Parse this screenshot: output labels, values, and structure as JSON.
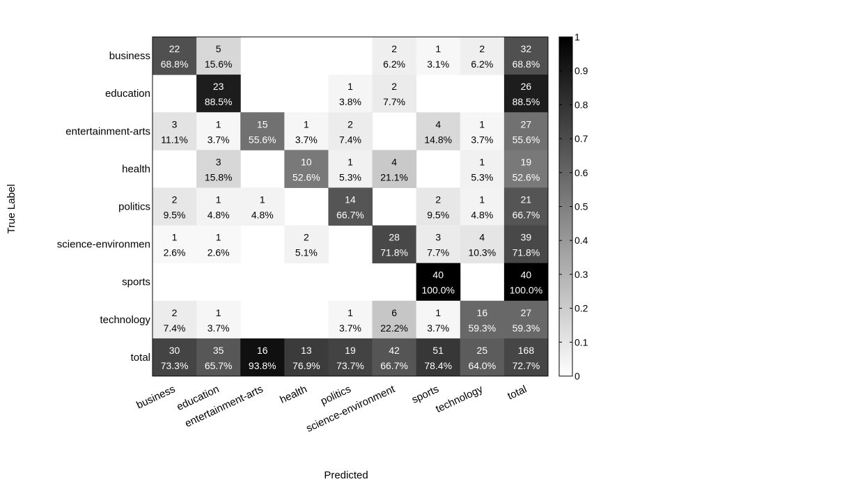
{
  "chart_data": {
    "type": "heatmap",
    "xlabel": "Predicted",
    "ylabel": "True Label",
    "x_categories": [
      "business",
      "education",
      "entertainment-arts",
      "health",
      "politics",
      "science-environment",
      "sports",
      "technology",
      "total"
    ],
    "y_categories": [
      "business",
      "education",
      "entertainment-arts",
      "health",
      "politics",
      "science-environmen",
      "sports",
      "technology",
      "total"
    ],
    "cells": [
      [
        {
          "count": "22",
          "pct": "68.8%",
          "v": 0.688
        },
        {
          "count": "5",
          "pct": "15.6%",
          "v": 0.156
        },
        null,
        null,
        null,
        {
          "count": "2",
          "pct": "6.2%",
          "v": 0.062
        },
        {
          "count": "1",
          "pct": "3.1%",
          "v": 0.031
        },
        {
          "count": "2",
          "pct": "6.2%",
          "v": 0.062
        },
        {
          "count": "32",
          "pct": "68.8%",
          "v": 0.688
        }
      ],
      [
        null,
        {
          "count": "23",
          "pct": "88.5%",
          "v": 0.885
        },
        null,
        null,
        {
          "count": "1",
          "pct": "3.8%",
          "v": 0.038
        },
        {
          "count": "2",
          "pct": "7.7%",
          "v": 0.077
        },
        null,
        null,
        {
          "count": "26",
          "pct": "88.5%",
          "v": 0.885
        }
      ],
      [
        {
          "count": "3",
          "pct": "11.1%",
          "v": 0.111
        },
        {
          "count": "1",
          "pct": "3.7%",
          "v": 0.037
        },
        {
          "count": "15",
          "pct": "55.6%",
          "v": 0.556
        },
        {
          "count": "1",
          "pct": "3.7%",
          "v": 0.037
        },
        {
          "count": "2",
          "pct": "7.4%",
          "v": 0.074
        },
        null,
        {
          "count": "4",
          "pct": "14.8%",
          "v": 0.148
        },
        {
          "count": "1",
          "pct": "3.7%",
          "v": 0.037
        },
        {
          "count": "27",
          "pct": "55.6%",
          "v": 0.556
        }
      ],
      [
        null,
        {
          "count": "3",
          "pct": "15.8%",
          "v": 0.158
        },
        null,
        {
          "count": "10",
          "pct": "52.6%",
          "v": 0.526
        },
        {
          "count": "1",
          "pct": "5.3%",
          "v": 0.053
        },
        {
          "count": "4",
          "pct": "21.1%",
          "v": 0.211
        },
        null,
        {
          "count": "1",
          "pct": "5.3%",
          "v": 0.053
        },
        {
          "count": "19",
          "pct": "52.6%",
          "v": 0.526
        }
      ],
      [
        {
          "count": "2",
          "pct": "9.5%",
          "v": 0.095
        },
        {
          "count": "1",
          "pct": "4.8%",
          "v": 0.048
        },
        {
          "count": "1",
          "pct": "4.8%",
          "v": 0.048
        },
        null,
        {
          "count": "14",
          "pct": "66.7%",
          "v": 0.667
        },
        null,
        {
          "count": "2",
          "pct": "9.5%",
          "v": 0.095
        },
        {
          "count": "1",
          "pct": "4.8%",
          "v": 0.048
        },
        {
          "count": "21",
          "pct": "66.7%",
          "v": 0.667
        }
      ],
      [
        {
          "count": "1",
          "pct": "2.6%",
          "v": 0.026
        },
        {
          "count": "1",
          "pct": "2.6%",
          "v": 0.026
        },
        null,
        {
          "count": "2",
          "pct": "5.1%",
          "v": 0.051
        },
        null,
        {
          "count": "28",
          "pct": "71.8%",
          "v": 0.718
        },
        {
          "count": "3",
          "pct": "7.7%",
          "v": 0.077
        },
        {
          "count": "4",
          "pct": "10.3%",
          "v": 0.103
        },
        {
          "count": "39",
          "pct": "71.8%",
          "v": 0.718
        }
      ],
      [
        null,
        null,
        null,
        null,
        null,
        null,
        {
          "count": "40",
          "pct": "100.0%",
          "v": 1.0
        },
        null,
        {
          "count": "40",
          "pct": "100.0%",
          "v": 1.0
        }
      ],
      [
        {
          "count": "2",
          "pct": "7.4%",
          "v": 0.074
        },
        {
          "count": "1",
          "pct": "3.7%",
          "v": 0.037
        },
        null,
        null,
        {
          "count": "1",
          "pct": "3.7%",
          "v": 0.037
        },
        {
          "count": "6",
          "pct": "22.2%",
          "v": 0.222
        },
        {
          "count": "1",
          "pct": "3.7%",
          "v": 0.037
        },
        {
          "count": "16",
          "pct": "59.3%",
          "v": 0.593
        },
        {
          "count": "27",
          "pct": "59.3%",
          "v": 0.593
        }
      ],
      [
        {
          "count": "30",
          "pct": "73.3%",
          "v": 0.733
        },
        {
          "count": "35",
          "pct": "65.7%",
          "v": 0.657
        },
        {
          "count": "16",
          "pct": "93.8%",
          "v": 0.938
        },
        {
          "count": "13",
          "pct": "76.9%",
          "v": 0.769
        },
        {
          "count": "19",
          "pct": "73.7%",
          "v": 0.737
        },
        {
          "count": "42",
          "pct": "66.7%",
          "v": 0.667
        },
        {
          "count": "51",
          "pct": "78.4%",
          "v": 0.784
        },
        {
          "count": "25",
          "pct": "64.0%",
          "v": 0.64
        },
        {
          "count": "168",
          "pct": "72.7%",
          "v": 0.727
        }
      ]
    ],
    "colorbar": {
      "ticks": [
        "0",
        "0.1",
        "0.2",
        "0.3",
        "0.4",
        "0.5",
        "0.6",
        "0.7",
        "0.8",
        "0.9",
        "1"
      ],
      "range": [
        0,
        1
      ],
      "colormap": "white-to-black"
    }
  }
}
